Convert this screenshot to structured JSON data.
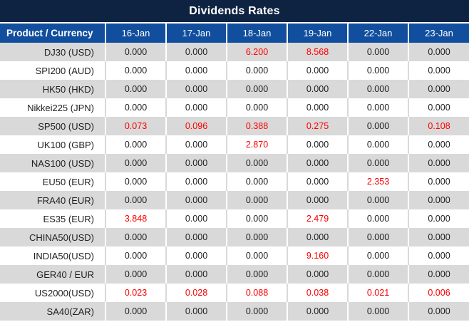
{
  "title": "Dividends Rates",
  "colors": {
    "title_bg": "#0e2342",
    "header_bg": "#114f9e",
    "row_alt_gray": "#d9d9d9",
    "row_white": "#ffffff",
    "value_default": "#1f1f1f",
    "value_highlight": "#ff0000"
  },
  "table": {
    "product_header": "Product / Currency",
    "date_headers": [
      "16-Jan",
      "17-Jan",
      "18-Jan",
      "19-Jan",
      "22-Jan",
      "23-Jan"
    ],
    "rows": [
      {
        "product": "DJ30 (USD)",
        "values": [
          "0.000",
          "0.000",
          "6.200",
          "8.568",
          "0.000",
          "0.000"
        ],
        "red": [
          false,
          false,
          true,
          true,
          false,
          false
        ]
      },
      {
        "product": "SPI200 (AUD)",
        "values": [
          "0.000",
          "0.000",
          "0.000",
          "0.000",
          "0.000",
          "0.000"
        ],
        "red": [
          false,
          false,
          false,
          false,
          false,
          false
        ]
      },
      {
        "product": "HK50 (HKD)",
        "values": [
          "0.000",
          "0.000",
          "0.000",
          "0.000",
          "0.000",
          "0.000"
        ],
        "red": [
          false,
          false,
          false,
          false,
          false,
          false
        ]
      },
      {
        "product": "Nikkei225 (JPN)",
        "values": [
          "0.000",
          "0.000",
          "0.000",
          "0.000",
          "0.000",
          "0.000"
        ],
        "red": [
          false,
          false,
          false,
          false,
          false,
          false
        ]
      },
      {
        "product": "SP500 (USD)",
        "values": [
          "0.073",
          "0.096",
          "0.388",
          "0.275",
          "0.000",
          "0.108"
        ],
        "red": [
          true,
          true,
          true,
          true,
          false,
          true
        ]
      },
      {
        "product": "UK100 (GBP)",
        "values": [
          "0.000",
          "0.000",
          "2.870",
          "0.000",
          "0.000",
          "0.000"
        ],
        "red": [
          false,
          false,
          true,
          false,
          false,
          false
        ]
      },
      {
        "product": "NAS100 (USD)",
        "values": [
          "0.000",
          "0.000",
          "0.000",
          "0.000",
          "0.000",
          "0.000"
        ],
        "red": [
          false,
          false,
          false,
          false,
          false,
          false
        ]
      },
      {
        "product": "EU50 (EUR)",
        "values": [
          "0.000",
          "0.000",
          "0.000",
          "0.000",
          "2.353",
          "0.000"
        ],
        "red": [
          false,
          false,
          false,
          false,
          true,
          false
        ]
      },
      {
        "product": "FRA40 (EUR)",
        "values": [
          "0.000",
          "0.000",
          "0.000",
          "0.000",
          "0.000",
          "0.000"
        ],
        "red": [
          false,
          false,
          false,
          false,
          false,
          false
        ]
      },
      {
        "product": "ES35 (EUR)",
        "values": [
          "3.848",
          "0.000",
          "0.000",
          "2.479",
          "0.000",
          "0.000"
        ],
        "red": [
          true,
          false,
          false,
          true,
          false,
          false
        ]
      },
      {
        "product": "CHINA50(USD)",
        "values": [
          "0.000",
          "0.000",
          "0.000",
          "0.000",
          "0.000",
          "0.000"
        ],
        "red": [
          false,
          false,
          false,
          false,
          false,
          false
        ]
      },
      {
        "product": "INDIA50(USD)",
        "values": [
          "0.000",
          "0.000",
          "0.000",
          "9.160",
          "0.000",
          "0.000"
        ],
        "red": [
          false,
          false,
          false,
          true,
          false,
          false
        ]
      },
      {
        "product": "GER40 / EUR",
        "values": [
          "0.000",
          "0.000",
          "0.000",
          "0.000",
          "0.000",
          "0.000"
        ],
        "red": [
          false,
          false,
          false,
          false,
          false,
          false
        ]
      },
      {
        "product": "US2000(USD)",
        "values": [
          "0.023",
          "0.028",
          "0.088",
          "0.038",
          "0.021",
          "0.006"
        ],
        "red": [
          true,
          true,
          true,
          true,
          true,
          true
        ]
      },
      {
        "product": "SA40(ZAR)",
        "values": [
          "0.000",
          "0.000",
          "0.000",
          "0.000",
          "0.000",
          "0.000"
        ],
        "red": [
          false,
          false,
          false,
          false,
          false,
          false
        ]
      }
    ]
  }
}
